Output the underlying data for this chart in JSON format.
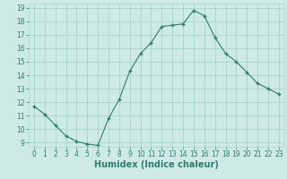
{
  "x": [
    0,
    1,
    2,
    3,
    4,
    5,
    6,
    7,
    8,
    9,
    10,
    11,
    12,
    13,
    14,
    15,
    16,
    17,
    18,
    19,
    20,
    21,
    22,
    23
  ],
  "y": [
    11.7,
    11.1,
    10.3,
    9.5,
    9.1,
    8.9,
    8.8,
    10.8,
    12.2,
    14.3,
    15.6,
    16.4,
    17.6,
    17.7,
    17.8,
    18.8,
    18.4,
    16.8,
    15.6,
    15.0,
    14.2,
    13.4,
    13.0,
    12.6
  ],
  "line_color": "#2e7d6e",
  "marker": "+",
  "marker_size": 3.5,
  "marker_lw": 1.0,
  "bg_color": "#ceeae6",
  "grid_color": "#aad4cf",
  "xlabel": "Humidex (Indice chaleur)",
  "ylim": [
    9,
    19
  ],
  "xlim": [
    -0.5,
    23.5
  ],
  "yticks": [
    9,
    10,
    11,
    12,
    13,
    14,
    15,
    16,
    17,
    18,
    19
  ],
  "xticks": [
    0,
    1,
    2,
    3,
    4,
    5,
    6,
    7,
    8,
    9,
    10,
    11,
    12,
    13,
    14,
    15,
    16,
    17,
    18,
    19,
    20,
    21,
    22,
    23
  ],
  "tick_fontsize": 5.5,
  "xlabel_fontsize": 7.0
}
